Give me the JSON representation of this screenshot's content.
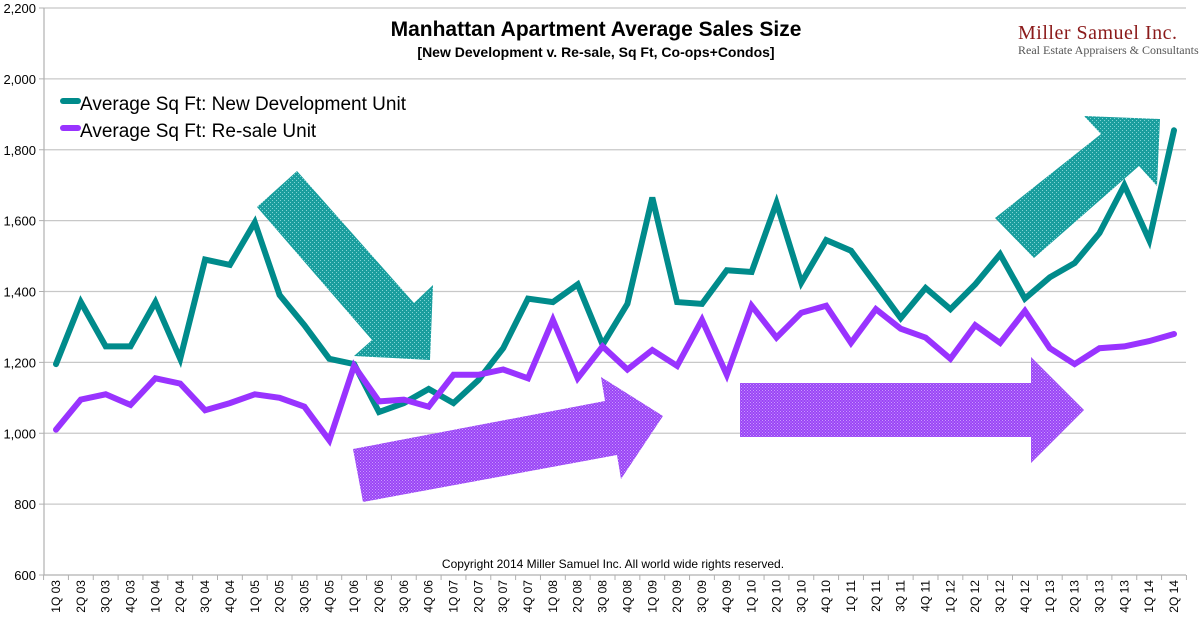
{
  "chart_data": {
    "type": "line",
    "title": "Manhattan Apartment Average Sales Size",
    "subtitle": "[New Development v. Re-sale, Sq Ft, Co-ops+Condos]",
    "xlabel": "",
    "ylabel": "",
    "ylim": [
      600,
      2200
    ],
    "yticks": [
      600,
      800,
      1000,
      1200,
      1400,
      1600,
      1800,
      2000,
      2200
    ],
    "ytick_labels": [
      "600",
      "800",
      "1,000",
      "1,200",
      "1,400",
      "1,600",
      "1,800",
      "2,000",
      "2,200"
    ],
    "grid": true,
    "legend_position": "top-left",
    "categories": [
      "1Q 03",
      "2Q 03",
      "3Q 03",
      "4Q 03",
      "1Q 04",
      "2Q 04",
      "3Q 04",
      "4Q 04",
      "1Q 05",
      "2Q 05",
      "3Q 05",
      "4Q 05",
      "1Q 06",
      "2Q 06",
      "3Q 06",
      "4Q 06",
      "1Q 07",
      "2Q 07",
      "3Q 07",
      "4Q 07",
      "1Q 08",
      "2Q 08",
      "3Q 08",
      "4Q 08",
      "1Q 09",
      "2Q 09",
      "3Q 09",
      "4Q 09",
      "1Q 10",
      "2Q 10",
      "3Q 10",
      "4Q 10",
      "1Q 11",
      "2Q 11",
      "3Q 11",
      "4Q 11",
      "1Q 12",
      "2Q 12",
      "3Q 12",
      "4Q 12",
      "1Q 13",
      "2Q 13",
      "3Q 13",
      "4Q 13",
      "1Q 14",
      "2Q 14"
    ],
    "series": [
      {
        "name": "Average Sq Ft: New Development Unit",
        "color": "#008b8b",
        "values": [
          1195,
          1370,
          1245,
          1245,
          1370,
          1210,
          1490,
          1475,
          1595,
          1390,
          1305,
          1210,
          1195,
          1060,
          1085,
          1125,
          1085,
          1150,
          1240,
          1380,
          1370,
          1420,
          1250,
          1365,
          1665,
          1370,
          1365,
          1460,
          1455,
          1650,
          1425,
          1545,
          1515,
          1420,
          1325,
          1410,
          1350,
          1420,
          1505,
          1380,
          1440,
          1480,
          1565,
          1700,
          1545,
          1855
        ]
      },
      {
        "name": "Average Sq Ft: Re-sale Unit",
        "color": "#9933ff",
        "values": [
          1010,
          1095,
          1110,
          1080,
          1155,
          1140,
          1065,
          1085,
          1110,
          1100,
          1075,
          980,
          1190,
          1090,
          1095,
          1075,
          1165,
          1165,
          1180,
          1155,
          1320,
          1155,
          1245,
          1180,
          1235,
          1190,
          1320,
          1165,
          1360,
          1270,
          1340,
          1360,
          1255,
          1350,
          1295,
          1270,
          1210,
          1305,
          1255,
          1345,
          1240,
          1195,
          1240,
          1245,
          1260,
          1280
        ]
      }
    ],
    "annotations": [
      {
        "type": "arrow",
        "direction": "down-right",
        "color": "#1a9e9e",
        "meaning": "new development decline"
      },
      {
        "type": "arrow",
        "direction": "up-right",
        "color": "#1a9e9e",
        "meaning": "new development rise"
      },
      {
        "type": "arrow",
        "direction": "right-slightly-up",
        "color": "#a64dff",
        "meaning": "re-sale rise"
      },
      {
        "type": "arrow",
        "direction": "right",
        "color": "#a64dff",
        "meaning": "re-sale flat"
      }
    ],
    "copyright": "Copyright 2014 Miller Samuel Inc.  All world wide rights reserved."
  },
  "logo": {
    "name": "Miller Samuel Inc.",
    "tagline": "Real Estate Appraisers & Consultants"
  }
}
